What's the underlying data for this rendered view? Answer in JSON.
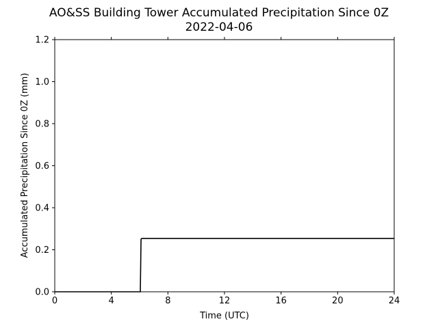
{
  "chart_data": {
    "type": "line",
    "title": "AO&SS Building Tower Accumulated Precipitation Since 0Z",
    "subtitle": "2022-04-06",
    "xlabel": "Time (UTC)",
    "ylabel": "Accumulated Precipitation Since 0Z (mm)",
    "xlim": [
      0,
      24
    ],
    "ylim": [
      0,
      1.2
    ],
    "xticks": [
      0,
      4,
      8,
      12,
      16,
      20,
      24
    ],
    "yticks": [
      0.0,
      0.2,
      0.4,
      0.6,
      0.8,
      1.0,
      1.2
    ],
    "xtick_labels": [
      "0",
      "4",
      "8",
      "12",
      "16",
      "20",
      "24"
    ],
    "ytick_labels": [
      "0.0",
      "0.2",
      "0.4",
      "0.6",
      "0.8",
      "1.0",
      "1.2"
    ],
    "grid": false,
    "line_color": "#000000",
    "series": [
      {
        "x": [
          0,
          6.05,
          6.1,
          6.15,
          24
        ],
        "y": [
          0,
          0,
          0.25,
          0.254,
          0.254
        ]
      }
    ]
  }
}
